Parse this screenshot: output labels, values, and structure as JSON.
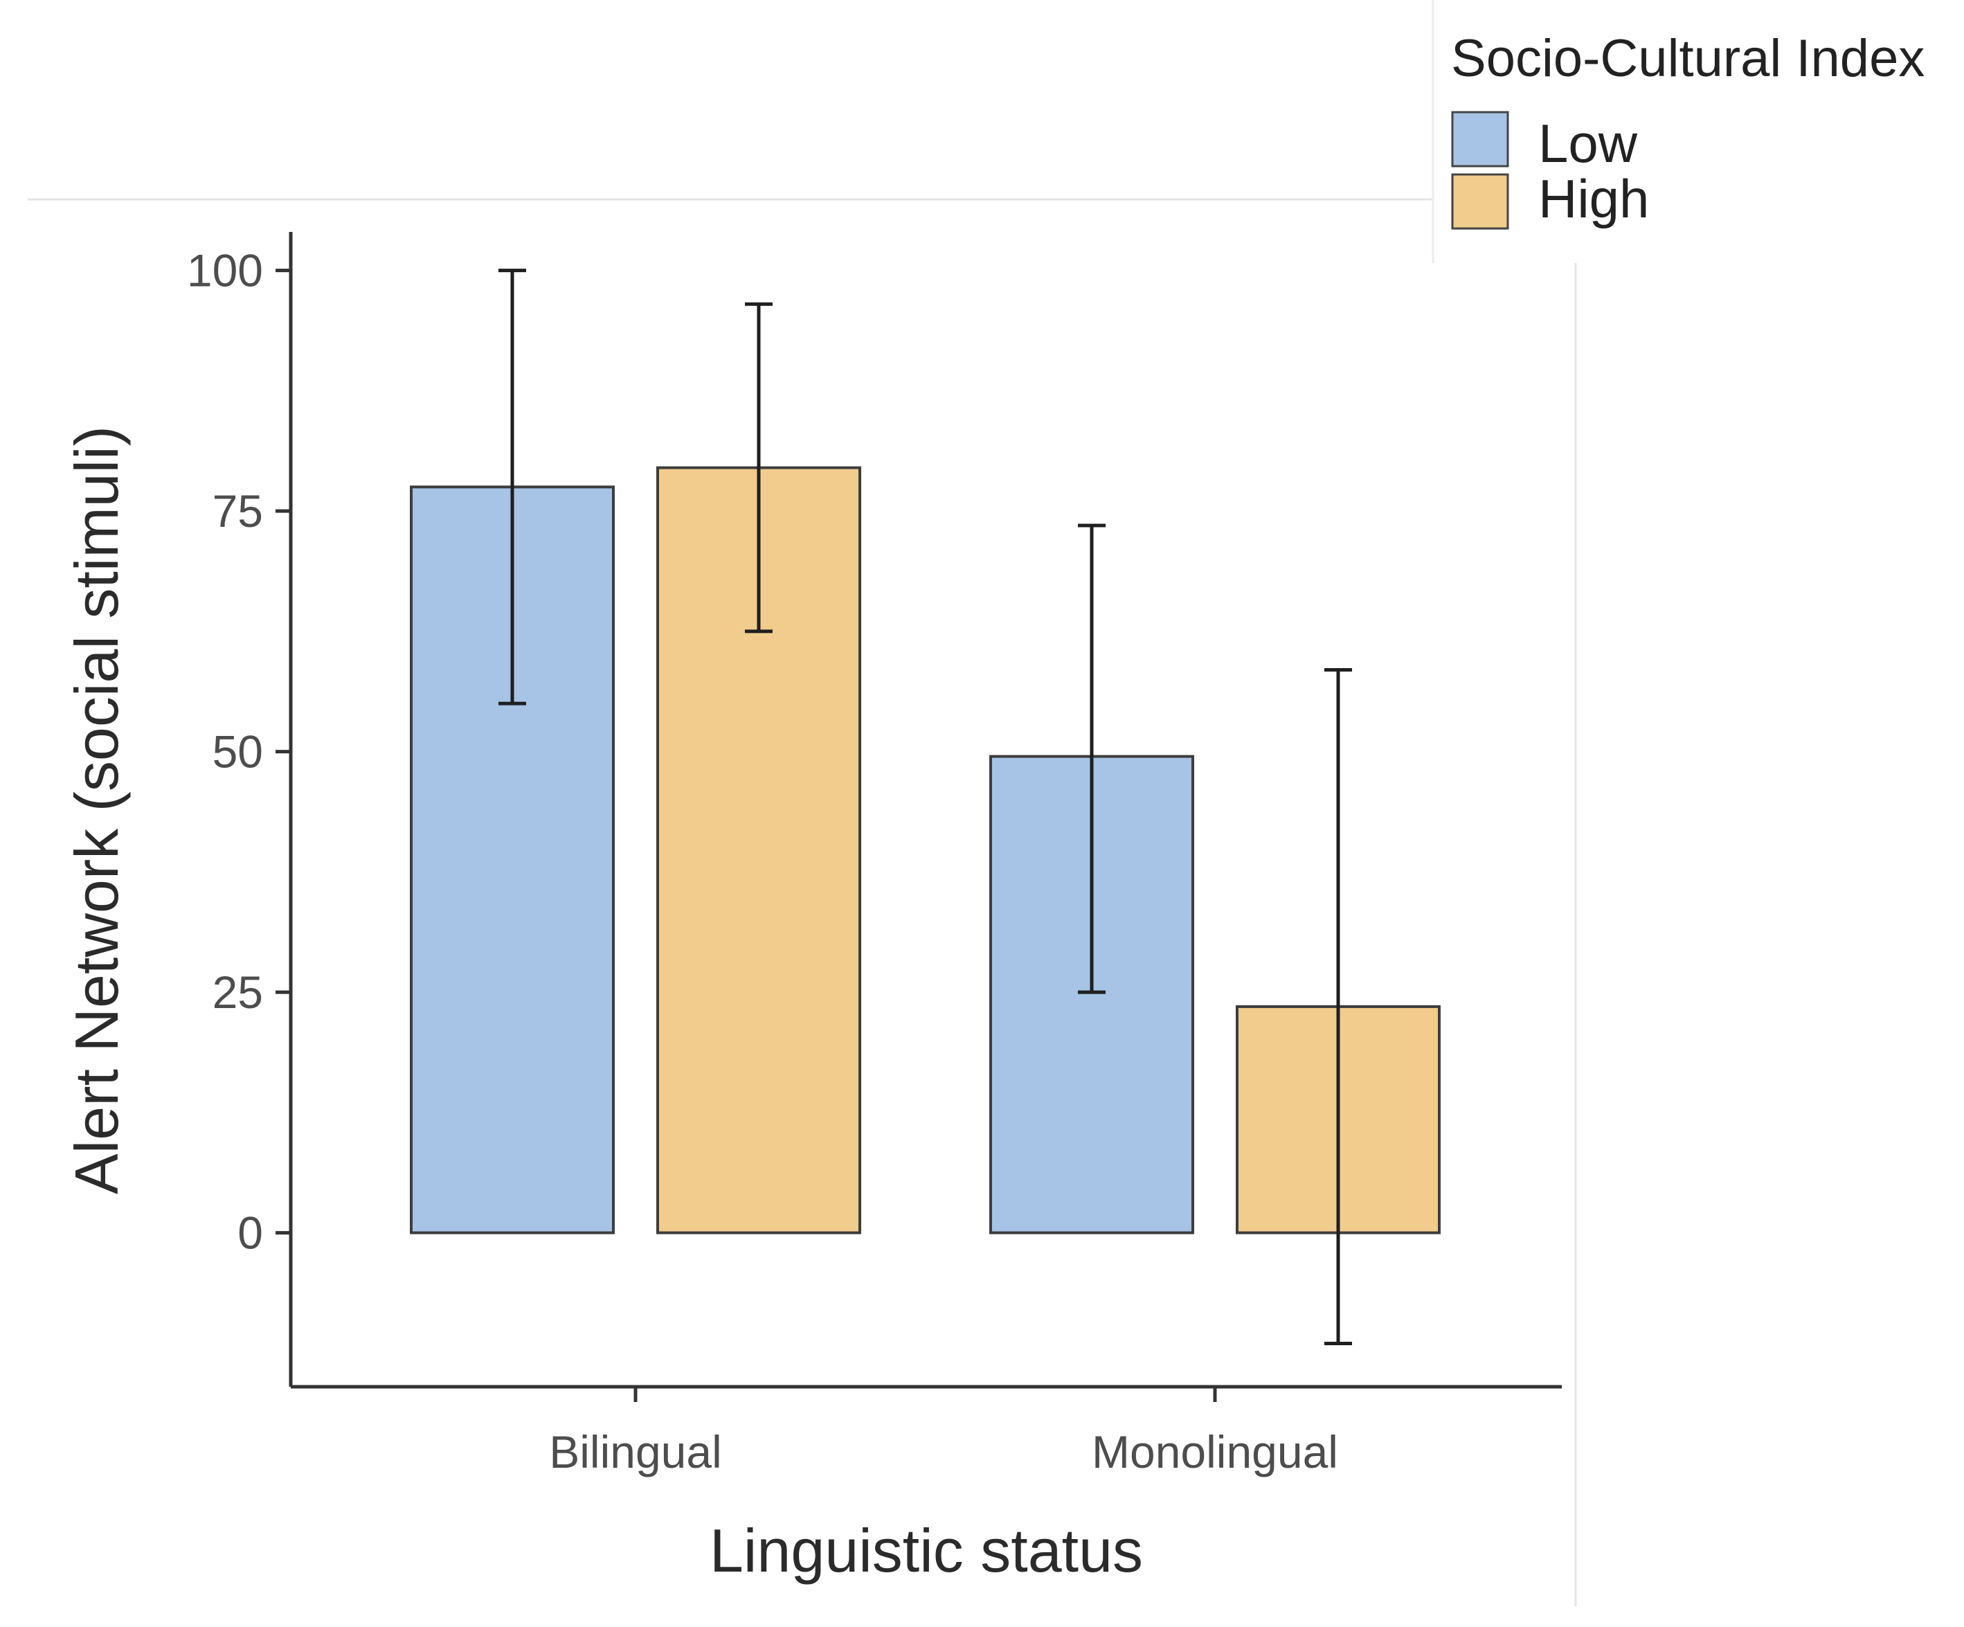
{
  "chart_data": {
    "type": "bar",
    "title": "",
    "xlabel": "Linguistic status",
    "ylabel": "Alert Network (social stimuli)",
    "categories": [
      "Bilingual",
      "Monolingual"
    ],
    "ylim": [
      -16,
      104
    ],
    "yticks": [
      0,
      25,
      50,
      75,
      100
    ],
    "grid": false,
    "legend": {
      "title": "Socio-Cultural Index",
      "position": "top-right"
    },
    "series": [
      {
        "name": "Low",
        "color": "#a7c3e6",
        "values": [
          77.5,
          49.5
        ],
        "error_low": [
          55,
          25
        ],
        "error_high": [
          100,
          73.5
        ]
      },
      {
        "name": "High",
        "color": "#f1cc8c",
        "values": [
          79.5,
          23.5
        ],
        "error_low": [
          62.5,
          -11.5
        ],
        "error_high": [
          96.5,
          58.5
        ]
      }
    ]
  }
}
